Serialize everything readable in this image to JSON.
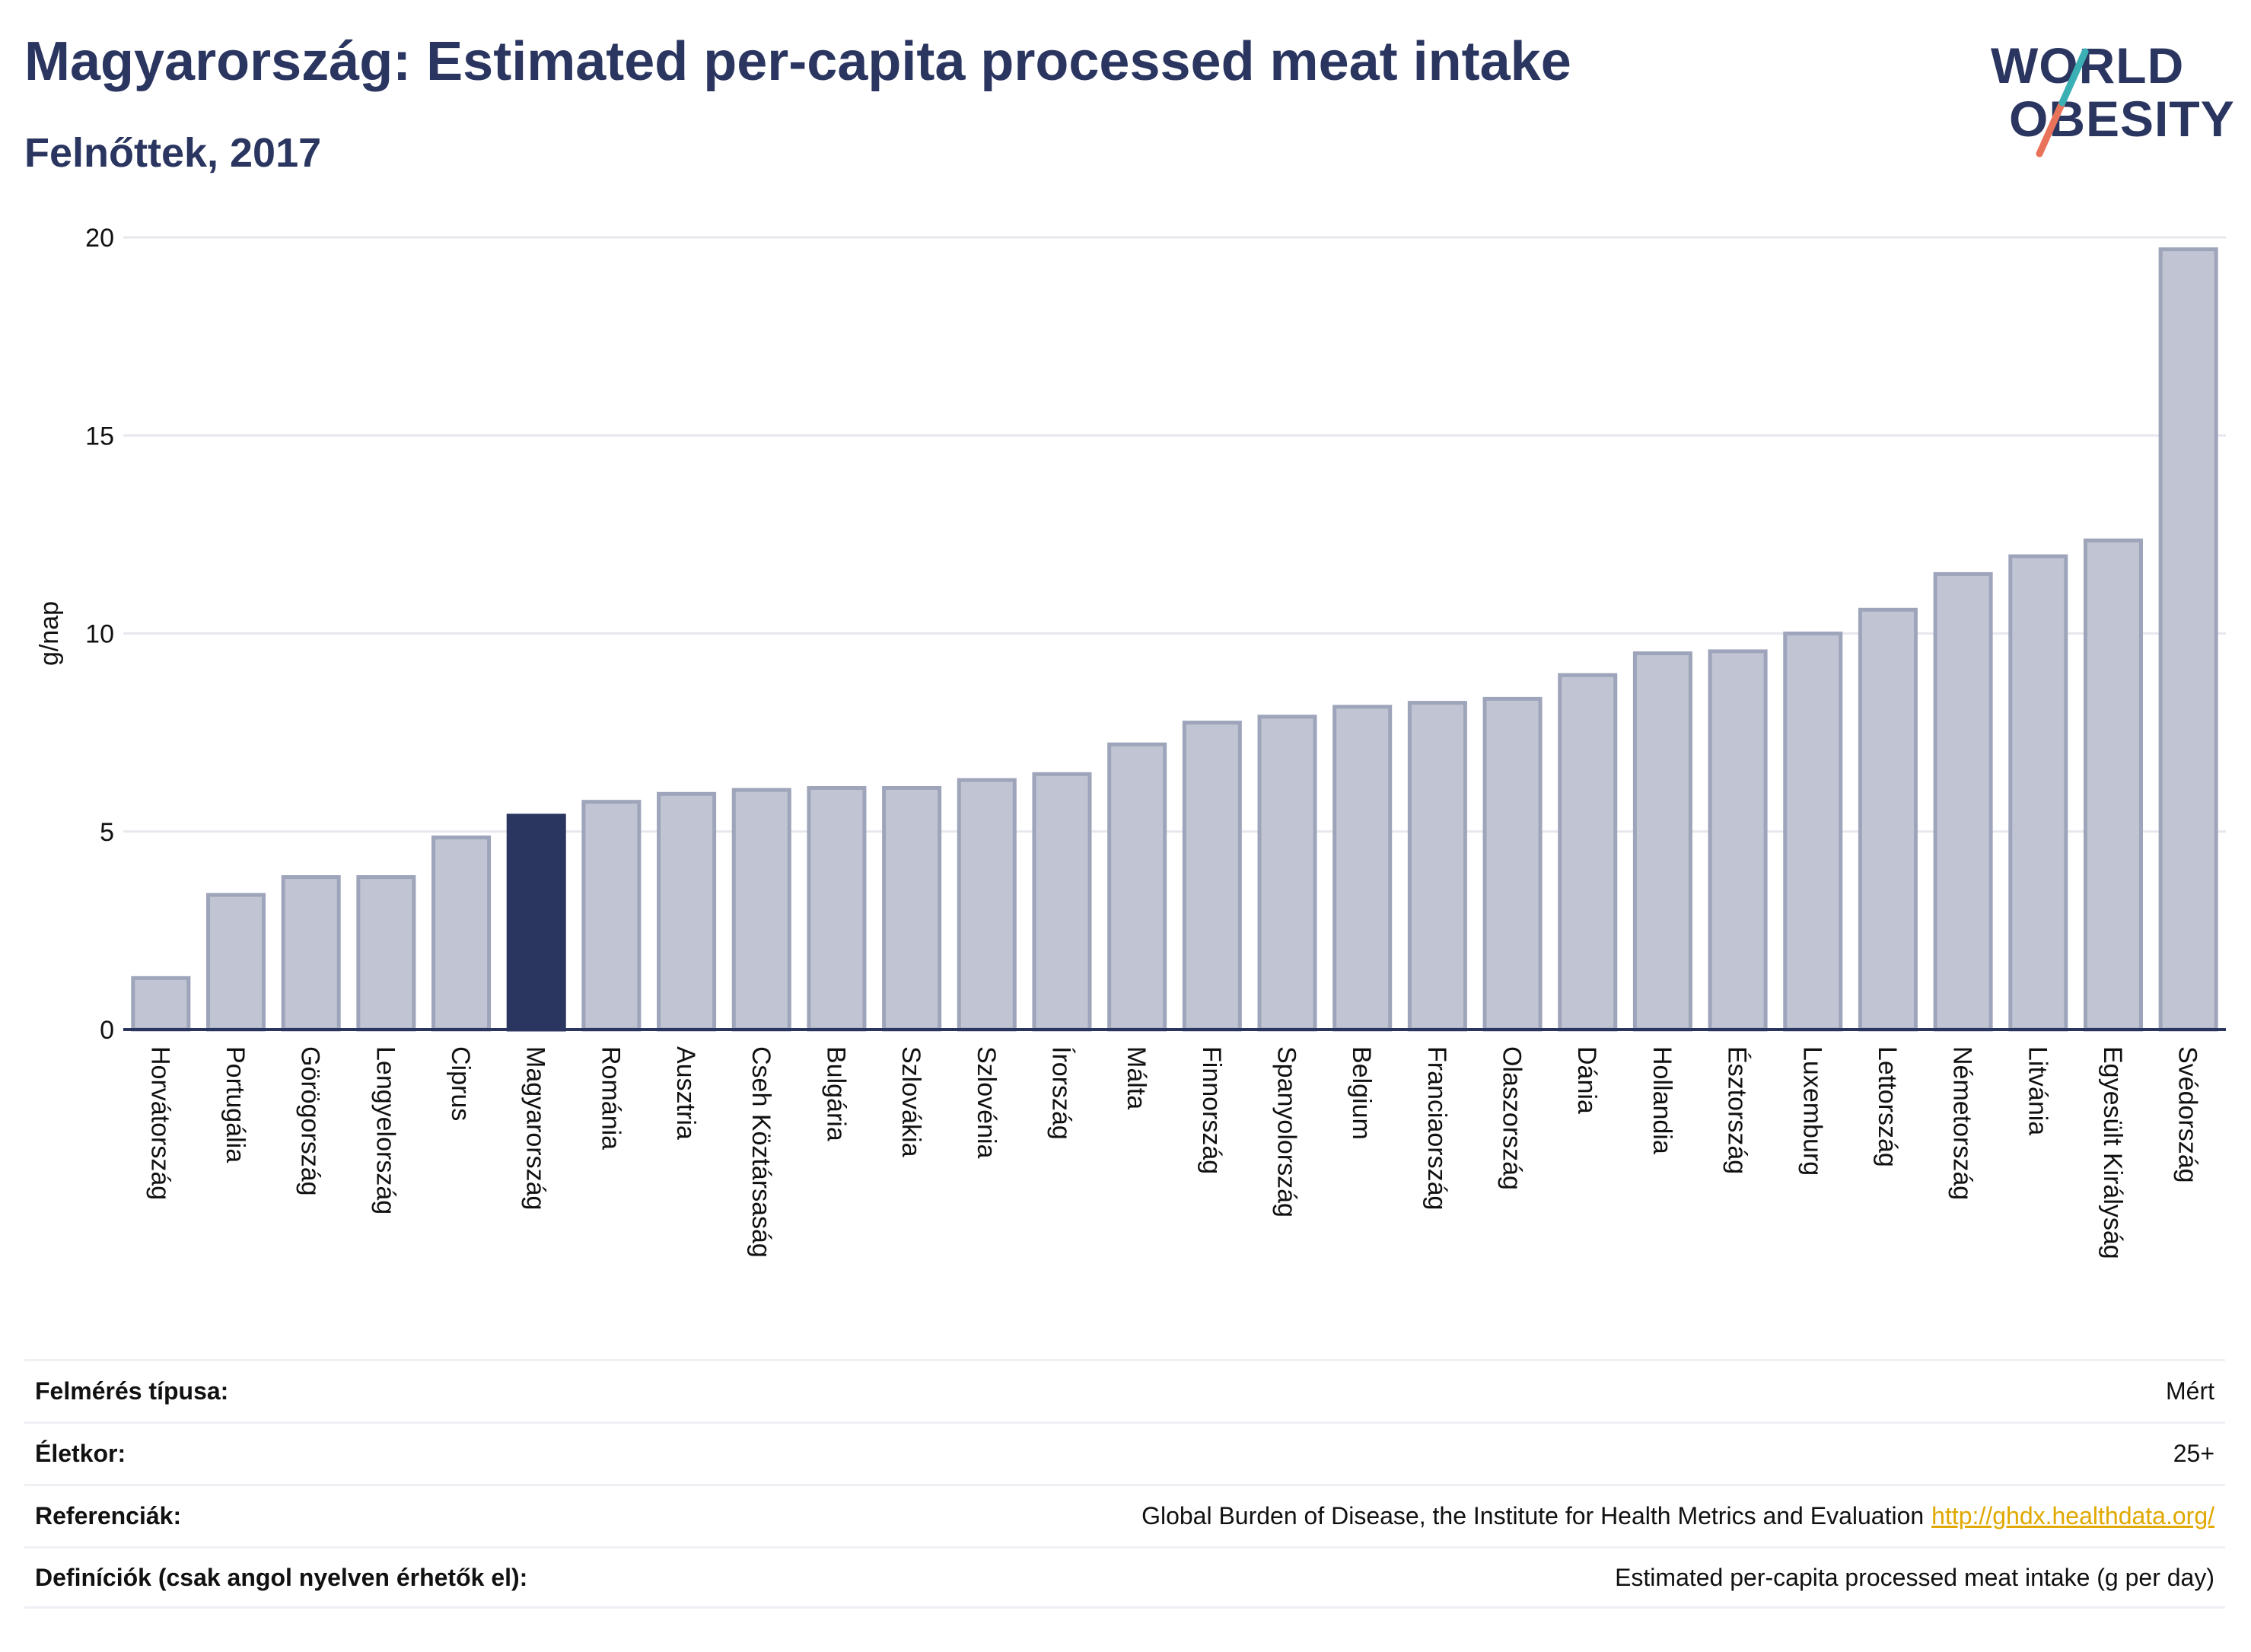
{
  "header": {
    "title": "Magyarország: Estimated per-capita processed meat intake",
    "subtitle": "Felnőttek, 2017"
  },
  "logo": {
    "line1": "WORLD",
    "line2": "OBESITY",
    "colors": {
      "text": "#2a3560",
      "accent_teal": "#3ab0b5",
      "accent_coral": "#e8735a"
    }
  },
  "colors": {
    "bar_fill": "#c1c5d3",
    "bar_stroke": "#9ea4ba",
    "highlight": "#2a3560",
    "grid": "#e6e8ee",
    "axis": "#2a3560"
  },
  "chart_data": {
    "type": "bar",
    "title": "Magyarország: Estimated per-capita processed meat intake",
    "subtitle": "Felnőttek, 2017",
    "ylabel": "g/nap",
    "xlabel": "",
    "ylim": [
      0,
      20
    ],
    "yticks": [
      0,
      5,
      10,
      15,
      20
    ],
    "grid": true,
    "highlight_category": "Magyarország",
    "categories": [
      "Horvátország",
      "Portugália",
      "Görögország",
      "Lengyelország",
      "Ciprus",
      "Magyarország",
      "Románia",
      "Ausztria",
      "Cseh Köztársaság",
      "Bulgária",
      "Szlovákia",
      "Szlovénia",
      "Írország",
      "Málta",
      "Finnország",
      "Spanyolország",
      "Belgium",
      "Franciaország",
      "Olaszország",
      "Dánia",
      "Hollandia",
      "Észtország",
      "Luxemburg",
      "Lettország",
      "Németország",
      "Litvánia",
      "Egyesült Királyság",
      "Svédország"
    ],
    "values": [
      1.3,
      3.4,
      3.85,
      3.85,
      4.85,
      5.4,
      5.75,
      5.95,
      6.05,
      6.1,
      6.1,
      6.3,
      6.45,
      7.2,
      7.75,
      7.9,
      8.15,
      8.25,
      8.35,
      8.95,
      9.5,
      9.55,
      10.0,
      10.6,
      11.5,
      11.95,
      12.35,
      19.7
    ]
  },
  "meta": {
    "rows": [
      {
        "label": "Felmérés típusa:",
        "value": "Mért"
      },
      {
        "label": "Életkor:",
        "value": "25+"
      },
      {
        "label": "Referenciák:",
        "value": "Global Burden of Disease, the Institute for Health Metrics and Evaluation",
        "link": "http://ghdx.healthdata.org/"
      },
      {
        "label": "Definíciók (csak angol nyelven érhetők el):",
        "value": "Estimated per-capita processed meat intake (g per day)"
      }
    ]
  }
}
